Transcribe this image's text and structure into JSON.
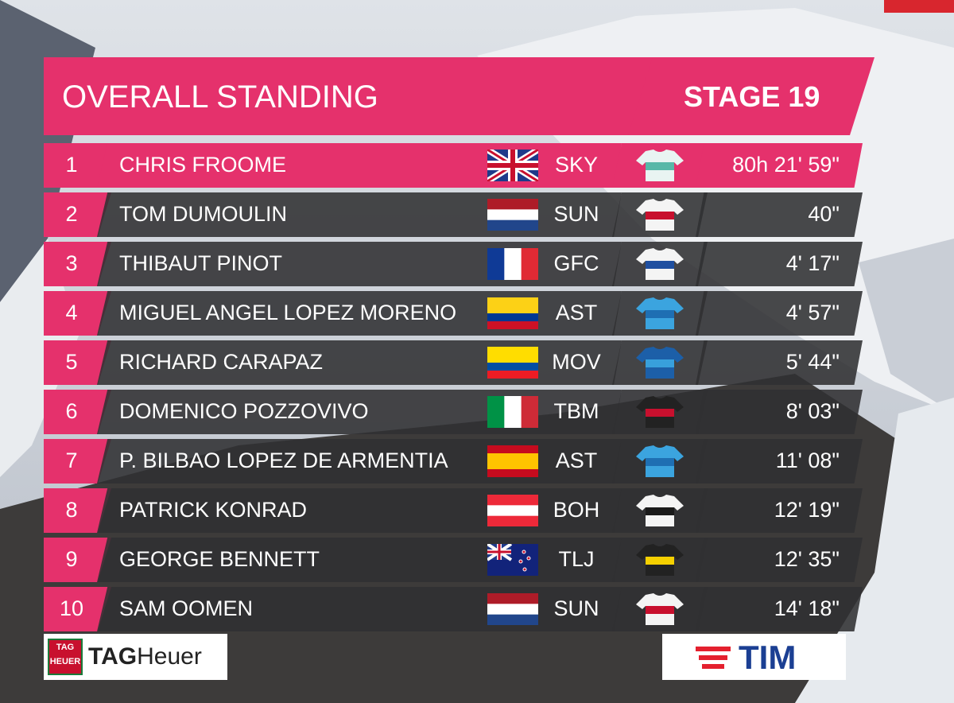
{
  "header": {
    "title": "OVERALL STANDING",
    "stage": "STAGE 19"
  },
  "standings": [
    {
      "rank": 1,
      "name": "CHRIS FROOME",
      "team": "SKY",
      "time": "80h 21' 59\""
    },
    {
      "rank": 2,
      "name": "TOM DUMOULIN",
      "team": "SUN",
      "time": "40\""
    },
    {
      "rank": 3,
      "name": "THIBAUT PINOT",
      "team": "GFC",
      "time": "4' 17\""
    },
    {
      "rank": 4,
      "name": "MIGUEL ANGEL LOPEZ MORENO",
      "team": "AST",
      "time": "4' 57\""
    },
    {
      "rank": 5,
      "name": "RICHARD CARAPAZ",
      "team": "MOV",
      "time": "5' 44\""
    },
    {
      "rank": 6,
      "name": "DOMENICO POZZOVIVO",
      "team": "TBM",
      "time": "8' 03\""
    },
    {
      "rank": 7,
      "name": "P. BILBAO LOPEZ DE ARMENTIA",
      "team": "AST",
      "time": "11' 08\""
    },
    {
      "rank": 8,
      "name": "PATRICK KONRAD",
      "team": "BOH",
      "time": "12' 19\""
    },
    {
      "rank": 9,
      "name": "GEORGE BENNETT",
      "team": "TLJ",
      "time": "12' 35\""
    },
    {
      "rank": 10,
      "name": "SAM OOMEN",
      "team": "SUN",
      "time": "14' 18\""
    }
  ],
  "sponsors": {
    "badge_top": "TAG",
    "badge_bottom": "HEUER",
    "left_bold": "TAG",
    "left_light": "Heuer",
    "right": "TIM"
  }
}
